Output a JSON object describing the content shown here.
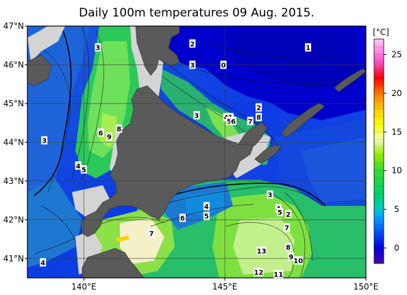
{
  "title": "Daily 100m temperatures 09 Aug. 2015.",
  "map": {
    "lon_range": [
      138,
      150
    ],
    "lat_range": [
      40.5,
      47
    ],
    "lon_ticks": [
      {
        "value": 140,
        "label": "140°E"
      },
      {
        "value": 145,
        "label": "145°E"
      },
      {
        "value": 150,
        "label": "150°E"
      }
    ],
    "lat_ticks": [
      {
        "value": 47,
        "label": "47°N"
      },
      {
        "value": 46,
        "label": "46°N"
      },
      {
        "value": 45,
        "label": "45°N"
      },
      {
        "value": 44,
        "label": "44°N"
      },
      {
        "value": 43,
        "label": "43°N"
      },
      {
        "value": 42,
        "label": "42°N"
      },
      {
        "value": 41,
        "label": "41°N"
      }
    ],
    "colors": {
      "land": "#5a5a5a",
      "no_data": "#d4d4d4",
      "grid": "#3a3a3a"
    }
  },
  "colorbar": {
    "unit": "[°C]",
    "range": [
      -2,
      27
    ],
    "ticks": [
      0,
      5,
      10,
      15,
      20,
      25
    ],
    "stops": [
      {
        "t": -2,
        "color": "#4a00b4"
      },
      {
        "t": 0,
        "color": "#0000dc"
      },
      {
        "t": 2,
        "color": "#0050ff"
      },
      {
        "t": 4,
        "color": "#00a0ff"
      },
      {
        "t": 5,
        "color": "#00c8c8"
      },
      {
        "t": 7,
        "color": "#00d264"
      },
      {
        "t": 10,
        "color": "#32dc32"
      },
      {
        "t": 12,
        "color": "#96eb00"
      },
      {
        "t": 14,
        "color": "#f0ffb4"
      },
      {
        "t": 16,
        "color": "#ffff00"
      },
      {
        "t": 18,
        "color": "#ffc800"
      },
      {
        "t": 20,
        "color": "#ff7800"
      },
      {
        "t": 22,
        "color": "#ff0000"
      },
      {
        "t": 24,
        "color": "#ff50c8"
      },
      {
        "t": 27,
        "color": "#ffc8ff"
      }
    ]
  },
  "contour_labels": [
    {
      "text": "3",
      "lon": 140.5,
      "lat": 46.45
    },
    {
      "text": "2",
      "lon": 143.85,
      "lat": 46.55
    },
    {
      "text": "3",
      "lon": 143.85,
      "lat": 46.0
    },
    {
      "text": "0",
      "lon": 144.95,
      "lat": 46.0
    },
    {
      "text": "1",
      "lon": 147.95,
      "lat": 46.45
    },
    {
      "text": "2",
      "lon": 146.2,
      "lat": 44.9
    },
    {
      "text": "3",
      "lon": 144.0,
      "lat": 44.7
    },
    {
      "text": "4",
      "lon": 145.05,
      "lat": 44.65
    },
    {
      "text": "1",
      "lon": 145.2,
      "lat": 44.65
    },
    {
      "text": "5",
      "lon": 145.15,
      "lat": 44.55
    },
    {
      "text": "6",
      "lon": 145.3,
      "lat": 44.55
    },
    {
      "text": "7",
      "lon": 145.9,
      "lat": 44.55
    },
    {
      "text": "8",
      "lon": 146.2,
      "lat": 44.65
    },
    {
      "text": "3",
      "lon": 138.6,
      "lat": 44.05
    },
    {
      "text": "6",
      "lon": 140.6,
      "lat": 44.25
    },
    {
      "text": "9",
      "lon": 140.9,
      "lat": 44.15
    },
    {
      "text": "8",
      "lon": 141.25,
      "lat": 44.35
    },
    {
      "text": "4",
      "lon": 139.8,
      "lat": 43.4
    },
    {
      "text": "5",
      "lon": 140.0,
      "lat": 43.3
    },
    {
      "text": "3",
      "lon": 146.6,
      "lat": 42.65
    },
    {
      "text": "4",
      "lon": 144.35,
      "lat": 42.35
    },
    {
      "text": "5",
      "lon": 144.35,
      "lat": 42.1
    },
    {
      "text": "6",
      "lon": 143.5,
      "lat": 42.05
    },
    {
      "text": "4",
      "lon": 146.9,
      "lat": 42.3
    },
    {
      "text": "5",
      "lon": 146.95,
      "lat": 42.2
    },
    {
      "text": "2",
      "lon": 147.25,
      "lat": 42.15
    },
    {
      "text": "7",
      "lon": 147.2,
      "lat": 41.8
    },
    {
      "text": "7",
      "lon": 142.4,
      "lat": 41.65
    },
    {
      "text": "8",
      "lon": 147.25,
      "lat": 41.3
    },
    {
      "text": "13",
      "lon": 146.3,
      "lat": 41.2
    },
    {
      "text": "9",
      "lon": 147.35,
      "lat": 41.05
    },
    {
      "text": "10",
      "lon": 147.6,
      "lat": 40.95
    },
    {
      "text": "12",
      "lon": 146.2,
      "lat": 40.65
    },
    {
      "text": "11",
      "lon": 146.9,
      "lat": 40.6
    },
    {
      "text": "4",
      "lon": 138.55,
      "lat": 40.9
    }
  ]
}
